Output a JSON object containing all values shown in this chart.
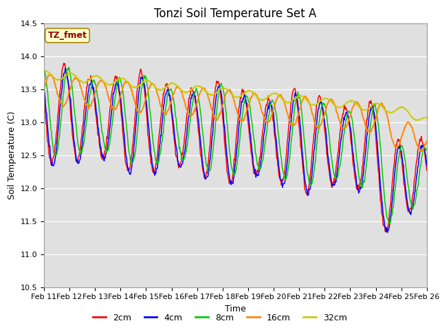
{
  "title": "Tonzi Soil Temperature Set A",
  "xlabel": "Time",
  "ylabel": "Soil Temperature (C)",
  "ylim": [
    10.5,
    14.5
  ],
  "xtick_labels": [
    "Feb 11",
    "Feb 12",
    "Feb 13",
    "Feb 14",
    "Feb 15",
    "Feb 16",
    "Feb 17",
    "Feb 18",
    "Feb 19",
    "Feb 20",
    "Feb 21",
    "Feb 22",
    "Feb 23",
    "Feb 24",
    "Feb 25",
    "Feb 26"
  ],
  "legend_label": "TZ_fmet",
  "legend_text_color": "#8B0000",
  "legend_bg_color": "#FFFFCC",
  "line_colors": [
    "#FF0000",
    "#0000FF",
    "#00CC00",
    "#FF8800",
    "#CCCC00"
  ],
  "line_labels": [
    "2cm",
    "4cm",
    "8cm",
    "16cm",
    "32cm"
  ],
  "bg_color": "#E0E0E0",
  "fig_bg_color": "#FFFFFF",
  "title_fontsize": 12,
  "axis_fontsize": 9,
  "tick_fontsize": 8
}
